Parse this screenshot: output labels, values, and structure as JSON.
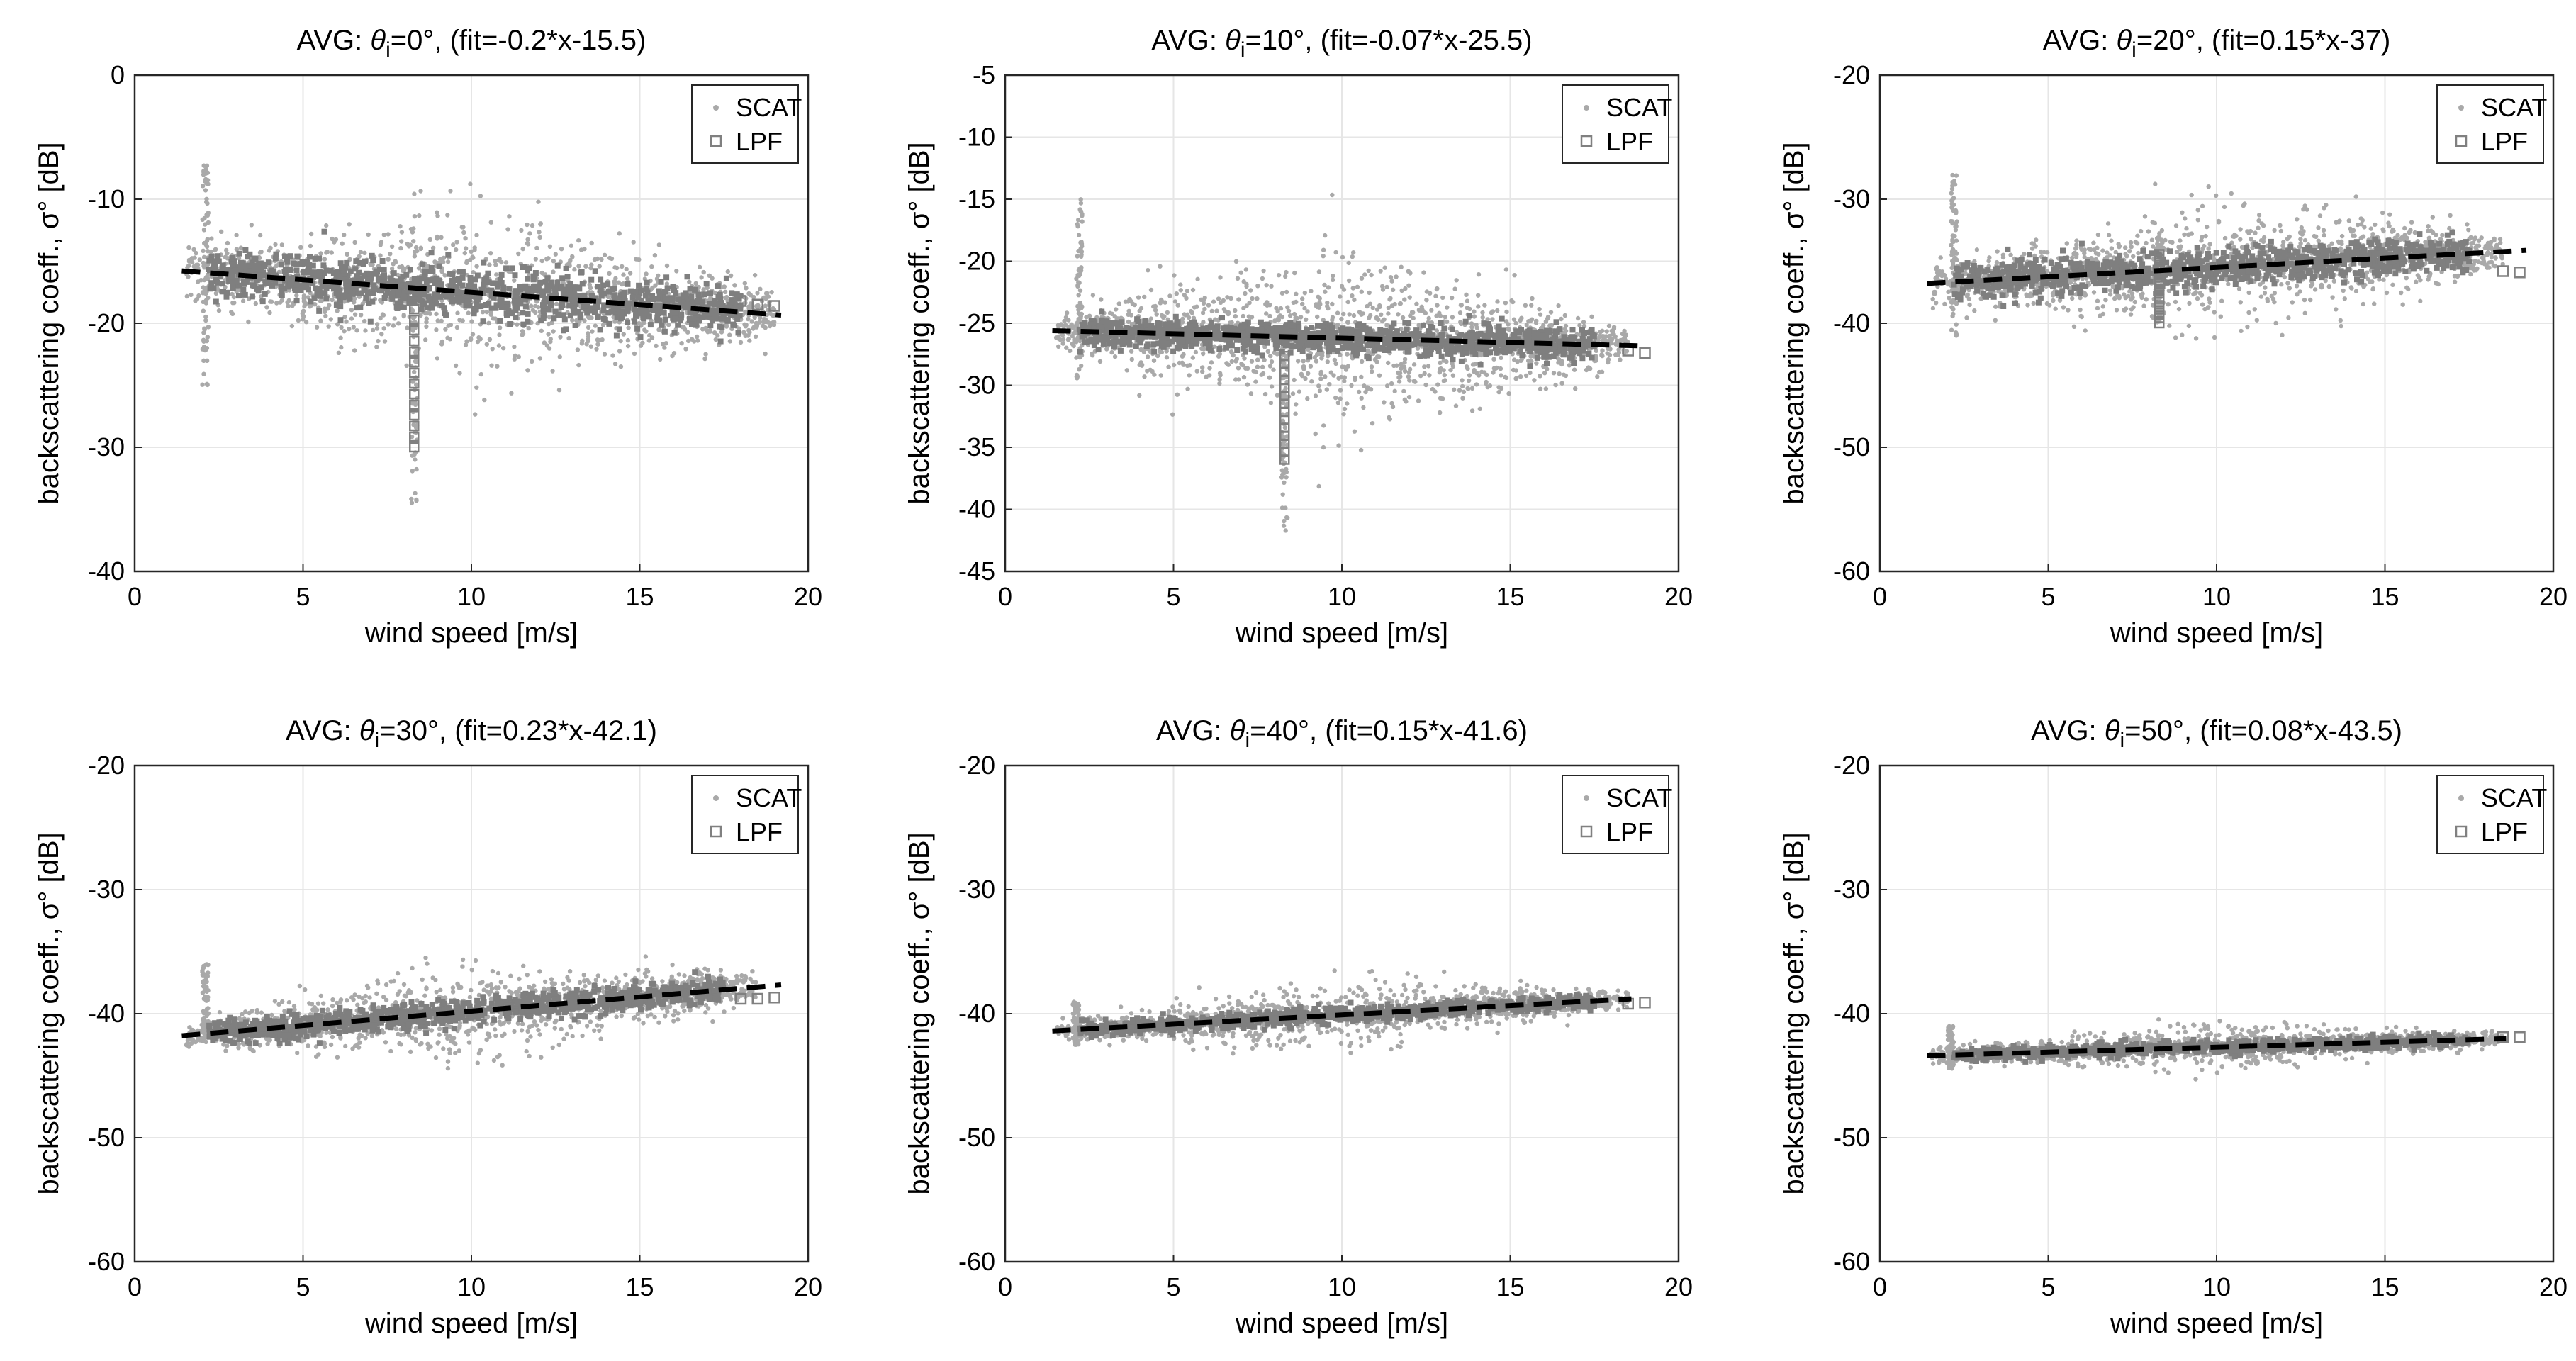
{
  "figure": {
    "series_names": [
      "SCAT",
      "LPF"
    ],
    "colors": {
      "scat": "#a9a9a9",
      "scat_dense": "#7f7f7f",
      "lpf": "#808080",
      "fit": "#000000",
      "grid": "#e6e6e6",
      "axis": "#262626"
    }
  },
  "chart_data": [
    {
      "type": "scatter",
      "title_prefix": "AVG: ",
      "title_theta": "θ",
      "title_sub": "i",
      "title_suffix": "=0°, (fit=-0.2*x-15.5)",
      "xlabel": "wind speed [m/s]",
      "ylabel": "backscattering coeff., σ° [dB]",
      "xlim": [
        0,
        20
      ],
      "ylim": [
        -40,
        0
      ],
      "xticks": [
        0,
        5,
        10,
        15,
        20
      ],
      "yticks": [
        -40,
        -30,
        -20,
        -10,
        0
      ],
      "grid": true,
      "legend": "top-right",
      "fit": {
        "slope": -0.2,
        "intercept": -15.5,
        "x_range": [
          1.4,
          19.2
        ]
      },
      "scat": {
        "x_range": [
          1.5,
          19
        ],
        "center_intercept": -15.5,
        "center_slope": -0.2,
        "spread_max": 6.0,
        "spread_min": 1.8,
        "count": 1400,
        "spike_x": [
          2.1,
          8.3
        ],
        "spike_y": [
          [
            -25,
            -7
          ],
          [
            -35,
            -16
          ]
        ]
      },
      "lpf": {
        "x": [
          18.0,
          18.5,
          19.0
        ],
        "y": [
          -18.2,
          -18.5,
          -18.6
        ],
        "spike": {
          "x": 8.3,
          "y_range": [
            -30,
            -18
          ]
        }
      }
    },
    {
      "type": "scatter",
      "title_prefix": "AVG: ",
      "title_theta": "θ",
      "title_sub": "i",
      "title_suffix": "=10°, (fit=-0.07*x-25.5)",
      "xlabel": "wind speed [m/s]",
      "ylabel": "backscattering coeff., σ° [dB]",
      "xlim": [
        0,
        20
      ],
      "ylim": [
        -45,
        -5
      ],
      "xticks": [
        0,
        5,
        10,
        15,
        20
      ],
      "yticks": [
        -45,
        -40,
        -35,
        -30,
        -25,
        -20,
        -15,
        -10,
        -5
      ],
      "grid": true,
      "legend": "top-right",
      "fit": {
        "slope": -0.07,
        "intercept": -25.5,
        "x_range": [
          1.4,
          18.8
        ]
      },
      "scat": {
        "x_range": [
          1.5,
          18.5
        ],
        "center_intercept": -25.5,
        "center_slope": -0.07,
        "spread_max": 6.5,
        "spread_min": 1.2,
        "count": 1400,
        "spike_x": [
          2.2,
          8.3
        ],
        "spike_y": [
          [
            -30,
            -15
          ],
          [
            -42,
            -26
          ]
        ]
      },
      "lpf": {
        "x": [
          18.5,
          19.0
        ],
        "y": [
          -27.2,
          -27.4
        ],
        "spike": {
          "x": 8.3,
          "y_range": [
            -36,
            -27
          ]
        }
      }
    },
    {
      "type": "scatter",
      "title_prefix": "AVG: ",
      "title_theta": "θ",
      "title_sub": "i",
      "title_suffix": "=20°, (fit=0.15*x-37)",
      "xlabel": "wind speed [m/s]",
      "ylabel": "backscattering coeff., σ° [dB]",
      "xlim": [
        0,
        20
      ],
      "ylim": [
        -60,
        -20
      ],
      "xticks": [
        0,
        5,
        10,
        15,
        20
      ],
      "yticks": [
        -60,
        -50,
        -40,
        -30,
        -20
      ],
      "grid": true,
      "legend": "top-right",
      "fit": {
        "slope": 0.15,
        "intercept": -37,
        "x_range": [
          1.4,
          19.2
        ]
      },
      "scat": {
        "x_range": [
          1.5,
          18.5
        ],
        "center_intercept": -37,
        "center_slope": 0.15,
        "spread_max": 4.5,
        "spread_min": 1.5,
        "count": 1300,
        "spike_x": [
          2.2,
          8.3
        ],
        "spike_y": [
          [
            -41,
            -28
          ],
          [
            -40,
            -33
          ]
        ]
      },
      "lpf": {
        "x": [
          18.5,
          19.0
        ],
        "y": [
          -35.8,
          -35.9
        ],
        "spike": {
          "x": 8.3,
          "y_range": [
            -40,
            -34
          ]
        }
      }
    },
    {
      "type": "scatter",
      "title_prefix": "AVG: ",
      "title_theta": "θ",
      "title_sub": "i",
      "title_suffix": "=30°, (fit=0.23*x-42.1)",
      "xlabel": "wind speed [m/s]",
      "ylabel": "backscattering coeff., σ° [dB]",
      "xlim": [
        0,
        20
      ],
      "ylim": [
        -60,
        -20
      ],
      "xticks": [
        0,
        5,
        10,
        15,
        20
      ],
      "yticks": [
        -60,
        -50,
        -40,
        -30,
        -20
      ],
      "grid": true,
      "legend": "top-right",
      "fit": {
        "slope": 0.23,
        "intercept": -42.1,
        "x_range": [
          1.4,
          19.2
        ]
      },
      "scat": {
        "x_range": [
          1.5,
          18.5
        ],
        "center_intercept": -42.1,
        "center_slope": 0.23,
        "spread_max": 3.2,
        "spread_min": 1.0,
        "count": 1200,
        "spike_x": [
          2.1
        ],
        "spike_y": [
          [
            -42,
            -36
          ]
        ]
      },
      "lpf": {
        "x": [
          18.0,
          18.5,
          19.0
        ],
        "y": [
          -38.8,
          -38.8,
          -38.7
        ],
        "spike": null
      }
    },
    {
      "type": "scatter",
      "title_prefix": "AVG: ",
      "title_theta": "θ",
      "title_sub": "i",
      "title_suffix": "=40°, (fit=0.15*x-41.6)",
      "xlabel": "wind speed [m/s]",
      "ylabel": "backscattering coeff., σ° [dB]",
      "xlim": [
        0,
        20
      ],
      "ylim": [
        -60,
        -20
      ],
      "xticks": [
        0,
        5,
        10,
        15,
        20
      ],
      "yticks": [
        -60,
        -50,
        -40,
        -30,
        -20
      ],
      "grid": true,
      "legend": "top-right",
      "fit": {
        "slope": 0.15,
        "intercept": -41.6,
        "x_range": [
          1.4,
          18.6
        ]
      },
      "scat": {
        "x_range": [
          1.5,
          18.5
        ],
        "center_intercept": -41.6,
        "center_slope": 0.15,
        "spread_max": 2.3,
        "spread_min": 0.6,
        "count": 1100,
        "spike_x": [
          2.1
        ],
        "spike_y": [
          [
            -42.5,
            -39
          ]
        ]
      },
      "lpf": {
        "x": [
          18.5,
          19.0
        ],
        "y": [
          -39.2,
          -39.1
        ],
        "spike": null
      }
    },
    {
      "type": "scatter",
      "title_prefix": "AVG: ",
      "title_theta": "θ",
      "title_sub": "i",
      "title_suffix": "=50°, (fit=0.08*x-43.5)",
      "xlabel": "wind speed [m/s]",
      "ylabel": "backscattering coeff., σ° [dB]",
      "xlim": [
        0,
        20
      ],
      "ylim": [
        -60,
        -20
      ],
      "xticks": [
        0,
        5,
        10,
        15,
        20
      ],
      "yticks": [
        -60,
        -50,
        -40,
        -30,
        -20
      ],
      "grid": true,
      "legend": "top-right",
      "fit": {
        "slope": 0.08,
        "intercept": -43.5,
        "x_range": [
          1.4,
          18.6
        ]
      },
      "scat": {
        "x_range": [
          1.5,
          18.5
        ],
        "center_intercept": -43.5,
        "center_slope": 0.08,
        "spread_max": 1.7,
        "spread_min": 0.5,
        "count": 1000,
        "spike_x": [
          2.1
        ],
        "spike_y": [
          [
            -44.5,
            -41
          ]
        ]
      },
      "lpf": {
        "x": [
          18.5,
          19.0
        ],
        "y": [
          -41.9,
          -41.9
        ],
        "spike": null
      }
    }
  ]
}
